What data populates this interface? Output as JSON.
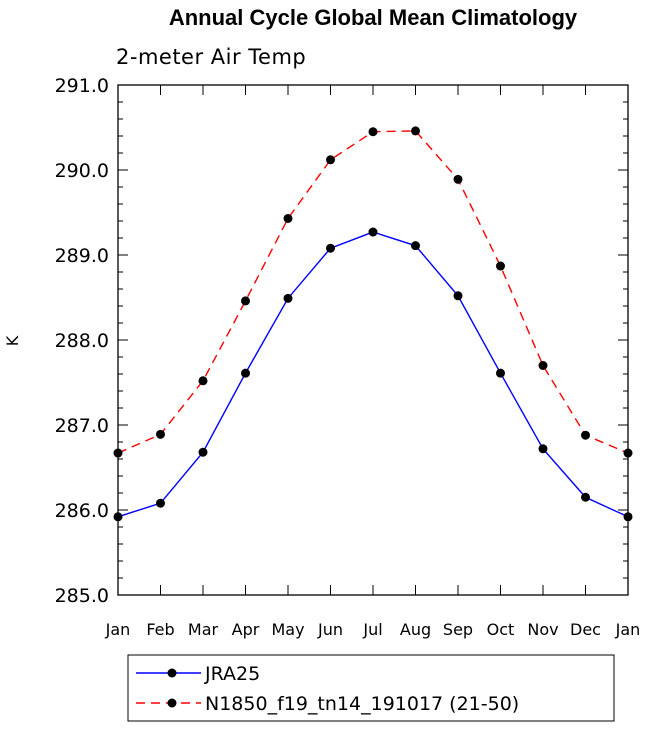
{
  "chart_data": {
    "type": "line",
    "title": "Annual Cycle Global Mean Climatology",
    "subtitle": "2-meter Air Temp",
    "xlabel": "",
    "ylabel": "K",
    "categories": [
      "Jan",
      "Feb",
      "Mar",
      "Apr",
      "May",
      "Jun",
      "Jul",
      "Aug",
      "Sep",
      "Oct",
      "Nov",
      "Dec",
      "Jan"
    ],
    "ylim": [
      285.0,
      291.0
    ],
    "yticks": [
      "285.0",
      "286.0",
      "287.0",
      "288.0",
      "289.0",
      "290.0",
      "291.0"
    ],
    "ytick_values": [
      285.0,
      286.0,
      287.0,
      288.0,
      289.0,
      290.0,
      291.0
    ],
    "yminor_step": 0.2,
    "grid": false,
    "legend_position": "bottom",
    "series": [
      {
        "name": "JRA25",
        "color": "#0000ff",
        "style": "solid",
        "marker": "filled-circle",
        "values": [
          285.92,
          286.08,
          286.68,
          287.61,
          288.49,
          289.08,
          289.27,
          289.11,
          288.52,
          287.61,
          286.72,
          286.15,
          285.92
        ]
      },
      {
        "name": "N1850_f19_tn14_191017 (21-50)",
        "color": "#ff0000",
        "style": "dashed",
        "marker": "filled-circle",
        "values": [
          286.67,
          286.89,
          287.52,
          288.46,
          289.43,
          290.12,
          290.45,
          290.46,
          289.89,
          288.87,
          287.7,
          286.88,
          286.67
        ]
      }
    ]
  }
}
